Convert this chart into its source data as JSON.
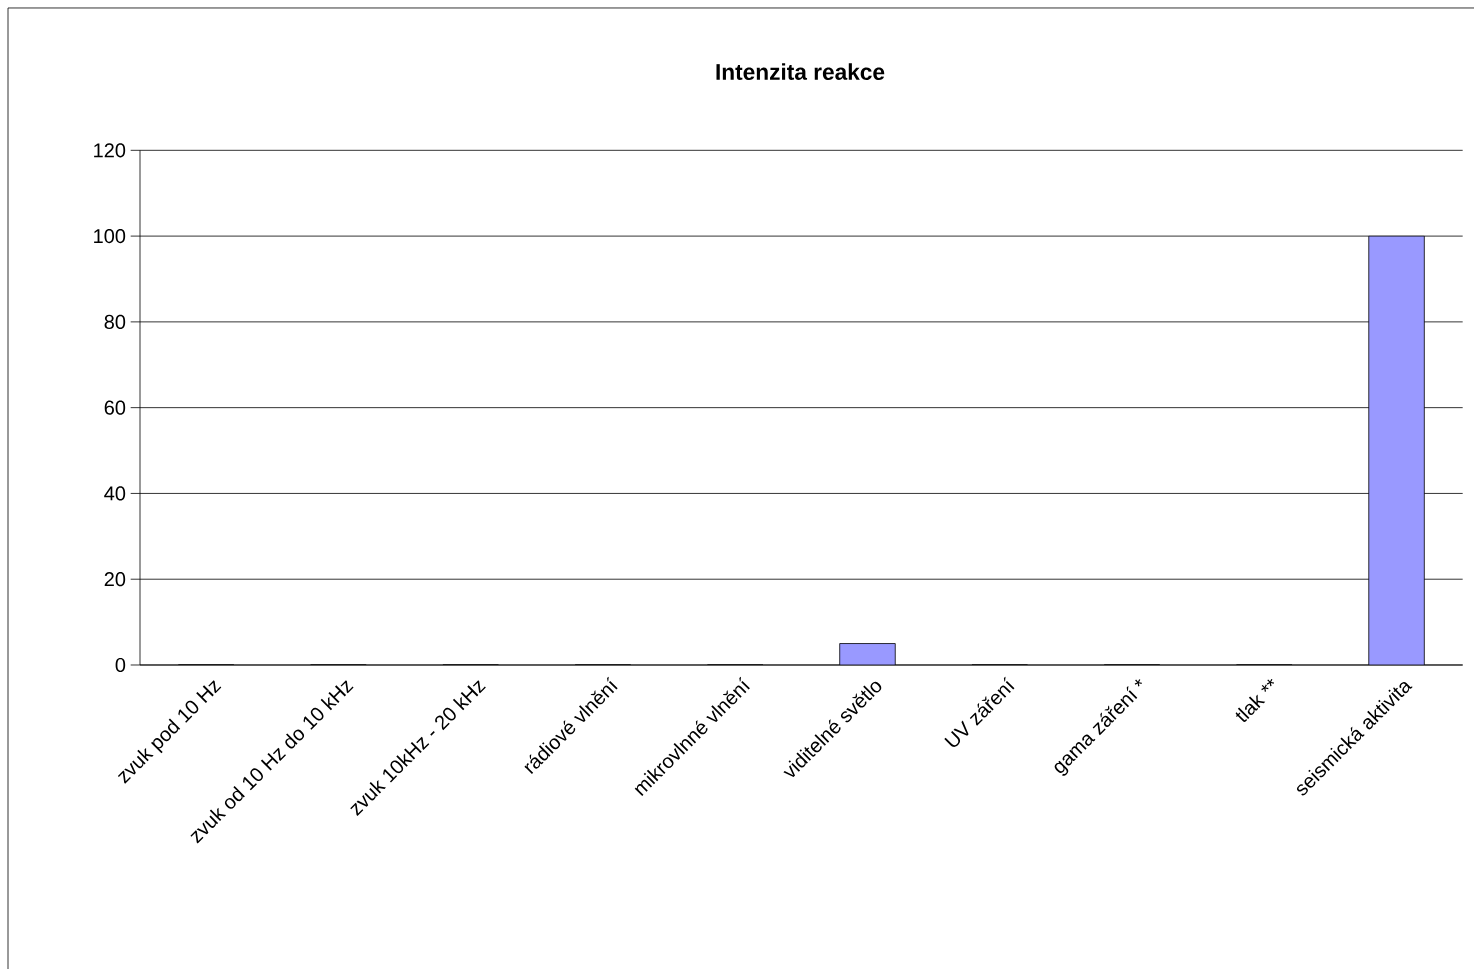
{
  "chart_data": {
    "type": "bar",
    "title": "Intenzita reakce",
    "categories": [
      "zvuk pod 10 Hz",
      "zvuk od 10 Hz do 10 kHz",
      "zvuk 10kHz - 20 kHz",
      "rádiové vlnění",
      "mikrovlnné vlnění",
      "viditelné světlo",
      "UV záření",
      "gama záření *",
      "tlak **",
      "seismická aktivita"
    ],
    "values": [
      0,
      0,
      0,
      0,
      0,
      5,
      0,
      0,
      0,
      100
    ],
    "color": "#9999ff",
    "ylim": [
      0,
      120
    ],
    "yticks": [
      0,
      20,
      40,
      60,
      80,
      100,
      120
    ],
    "grid": "y"
  }
}
